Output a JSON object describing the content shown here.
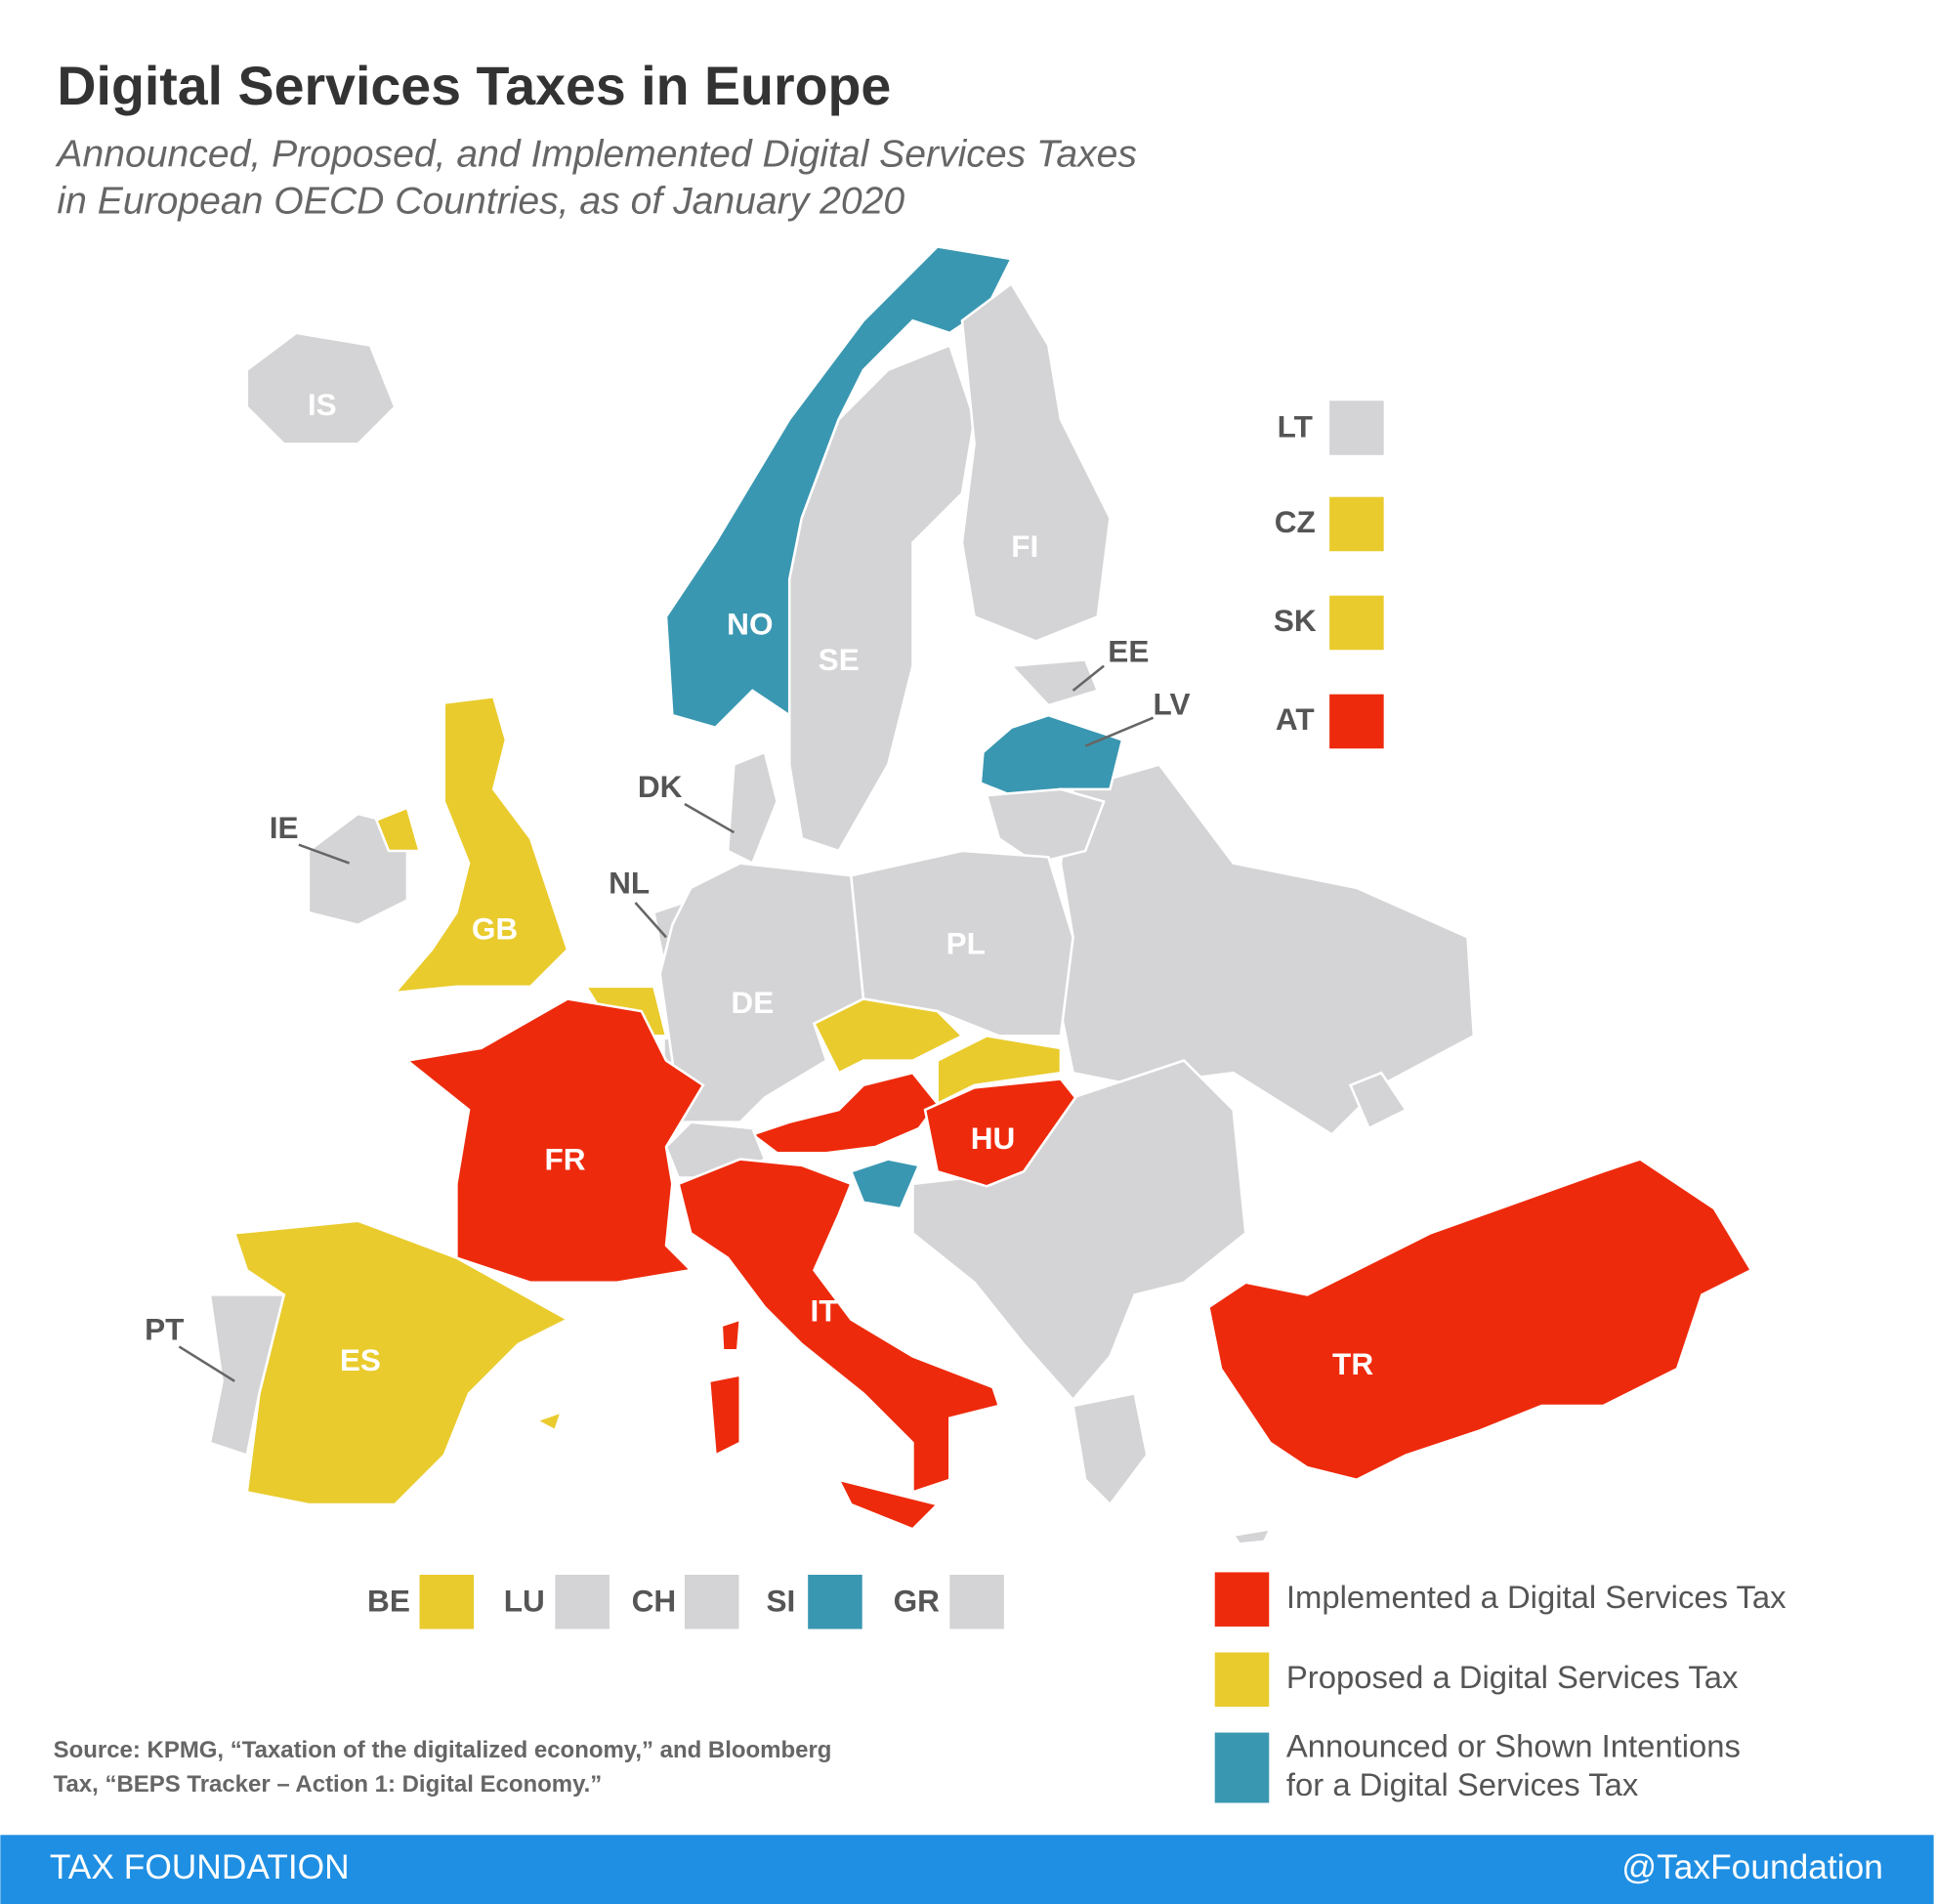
{
  "header": {
    "title": "Digital Services Taxes in Europe",
    "subtitle": [
      "Announced, Proposed, and Implemented Digital Services Taxes",
      "in European OECD Countries, as of January 2020"
    ]
  },
  "legend": [
    {
      "label": [
        "Implemented a Digital Services Tax"
      ],
      "color": "#ee2a0c"
    },
    {
      "label": [
        "Proposed a Digital Services Tax"
      ],
      "color": "#e9cb2d"
    },
    {
      "label": [
        "Announced or Shown Intentions",
        "for a Digital Services Tax"
      ],
      "color": "#3a97b1"
    }
  ],
  "no_status_color": "#d4d4d6",
  "countries": [
    {
      "code": "IS",
      "status": null
    },
    {
      "code": "NO",
      "status": 2
    },
    {
      "code": "SE",
      "status": null
    },
    {
      "code": "FI",
      "status": null
    },
    {
      "code": "EE",
      "status": null
    },
    {
      "code": "LV",
      "status": 2
    },
    {
      "code": "LT",
      "status": null
    },
    {
      "code": "DK",
      "status": null
    },
    {
      "code": "IE",
      "status": null
    },
    {
      "code": "GB",
      "status": 1
    },
    {
      "code": "NL",
      "status": null
    },
    {
      "code": "BE",
      "status": 1
    },
    {
      "code": "LU",
      "status": null
    },
    {
      "code": "DE",
      "status": null
    },
    {
      "code": "PL",
      "status": null
    },
    {
      "code": "CZ",
      "status": 1
    },
    {
      "code": "SK",
      "status": 1
    },
    {
      "code": "AT",
      "status": 0
    },
    {
      "code": "HU",
      "status": 0
    },
    {
      "code": "SI",
      "status": 2
    },
    {
      "code": "CH",
      "status": null
    },
    {
      "code": "FR",
      "status": 0
    },
    {
      "code": "ES",
      "status": 1
    },
    {
      "code": "PT",
      "status": null
    },
    {
      "code": "IT",
      "status": 0
    },
    {
      "code": "GR",
      "status": null
    },
    {
      "code": "TR",
      "status": 0
    }
  ],
  "source": [
    "Source: KPMG, “Taxation of the digitalized economy,” and Bloomberg",
    "Tax, “BEPS Tracker – Action 1: Digital Economy.”"
  ],
  "footer": {
    "brand": "TAX FOUNDATION",
    "handle": "@TaxFoundation"
  }
}
